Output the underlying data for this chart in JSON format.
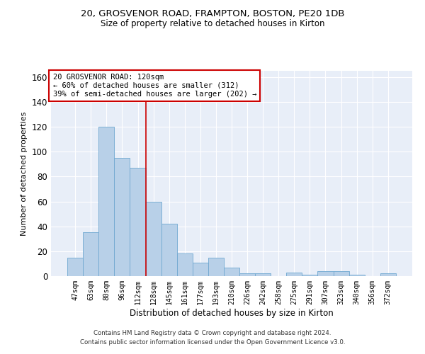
{
  "title_line1": "20, GROSVENOR ROAD, FRAMPTON, BOSTON, PE20 1DB",
  "title_line2": "Size of property relative to detached houses in Kirton",
  "xlabel": "Distribution of detached houses by size in Kirton",
  "ylabel": "Number of detached properties",
  "categories": [
    "47sqm",
    "63sqm",
    "80sqm",
    "96sqm",
    "112sqm",
    "128sqm",
    "145sqm",
    "161sqm",
    "177sqm",
    "193sqm",
    "210sqm",
    "226sqm",
    "242sqm",
    "258sqm",
    "275sqm",
    "291sqm",
    "307sqm",
    "323sqm",
    "340sqm",
    "356sqm",
    "372sqm"
  ],
  "values": [
    15,
    35,
    120,
    95,
    87,
    60,
    42,
    18,
    11,
    15,
    7,
    2,
    2,
    0,
    3,
    1,
    4,
    4,
    1,
    0,
    2
  ],
  "bar_color": "#b8d0e8",
  "bar_edge_color": "#6fa8d0",
  "reference_line_x": 4.5,
  "reference_line_color": "#cc0000",
  "annotation_text": "20 GROSVENOR ROAD: 120sqm\n← 60% of detached houses are smaller (312)\n39% of semi-detached houses are larger (202) →",
  "annotation_box_color": "#cc0000",
  "ylim": [
    0,
    165
  ],
  "yticks": [
    0,
    20,
    40,
    60,
    80,
    100,
    120,
    140,
    160
  ],
  "footer_line1": "Contains HM Land Registry data © Crown copyright and database right 2024.",
  "footer_line2": "Contains public sector information licensed under the Open Government Licence v3.0.",
  "background_color": "#e8eef8"
}
